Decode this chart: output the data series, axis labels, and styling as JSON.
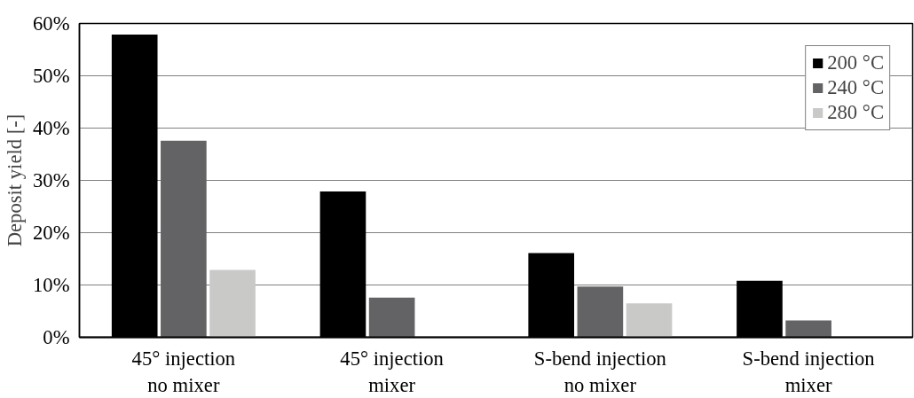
{
  "chart_data": {
    "type": "bar",
    "ylabel": "Deposit yield [-]",
    "categories": [
      "45° injection\nno mixer",
      "45° injection\nmixer",
      "S-bend injection\nno mixer",
      "S-bend injection\nmixer"
    ],
    "series": [
      {
        "name": "200 °C",
        "color": "#000000",
        "values": [
          57.9,
          27.9,
          16.1,
          10.8
        ]
      },
      {
        "name": "240 °C",
        "color": "#636366",
        "values": [
          37.6,
          7.6,
          9.7,
          3.2
        ]
      },
      {
        "name": "280 °C",
        "color": "#c9c9c8",
        "values": [
          12.9,
          null,
          6.5,
          null
        ]
      }
    ],
    "ylim": [
      0,
      60
    ],
    "yticks": [
      {
        "value": 0,
        "label": "0%"
      },
      {
        "value": 10,
        "label": "10%"
      },
      {
        "value": 20,
        "label": "20%"
      },
      {
        "value": 30,
        "label": "30%"
      },
      {
        "value": 40,
        "label": "40%"
      },
      {
        "value": 50,
        "label": "50%"
      },
      {
        "value": 60,
        "label": "60%"
      }
    ],
    "grid": "y",
    "legend": "top right"
  }
}
